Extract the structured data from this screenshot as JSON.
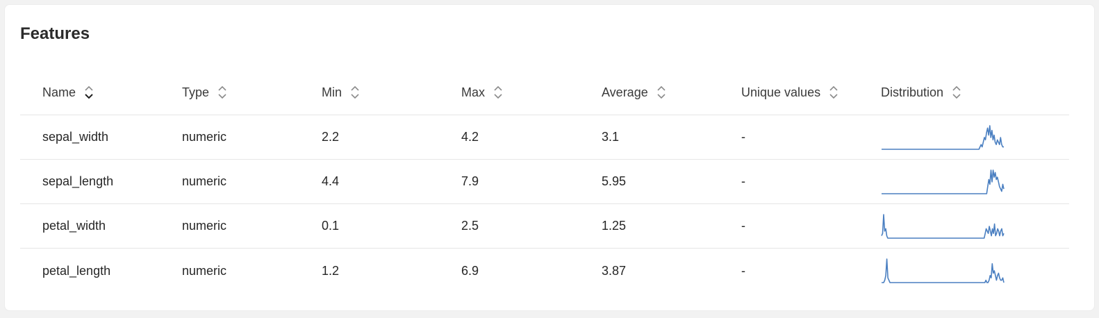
{
  "card": {
    "title": "Features"
  },
  "columns": [
    {
      "label": "Name",
      "sort_icon": "sort-toggle-icon",
      "active": true
    },
    {
      "label": "Type",
      "sort_icon": "sort-toggle-icon",
      "active": false
    },
    {
      "label": "Min",
      "sort_icon": "sort-toggle-icon",
      "active": false
    },
    {
      "label": "Max",
      "sort_icon": "sort-toggle-icon",
      "active": false
    },
    {
      "label": "Average",
      "sort_icon": "sort-toggle-icon",
      "active": false
    },
    {
      "label": "Unique values",
      "sort_icon": "sort-toggle-icon",
      "active": false
    },
    {
      "label": "Distribution",
      "sort_icon": "sort-toggle-icon",
      "active": false
    }
  ],
  "rows": [
    {
      "name": "sepal_width",
      "type": "numeric",
      "min": "2.2",
      "max": "4.2",
      "average": "3.1",
      "unique": "-",
      "distribution": [
        0,
        0,
        0,
        0,
        0,
        0,
        0,
        0,
        0,
        0,
        0,
        0,
        0,
        0,
        0,
        0,
        0,
        0,
        0,
        0,
        0,
        0,
        0,
        0,
        0,
        0,
        0,
        0,
        0,
        0,
        0,
        0,
        0,
        0,
        0,
        0,
        0,
        0,
        0,
        0,
        0,
        0,
        0,
        0,
        0,
        0,
        0,
        0,
        0,
        0,
        0,
        0,
        0,
        0,
        0,
        0,
        0,
        0,
        0,
        0,
        0,
        0,
        0,
        0,
        0,
        0,
        0,
        0,
        0,
        0,
        0,
        0,
        0,
        0,
        0,
        0,
        0,
        0,
        0,
        0,
        0,
        0,
        0,
        0,
        0,
        0,
        0,
        0,
        0,
        0,
        0,
        1,
        2,
        1,
        3,
        5,
        4,
        7,
        9,
        6,
        10,
        5,
        8,
        4,
        6,
        3,
        2,
        4,
        3,
        2,
        5,
        2,
        1,
        1
      ]
    },
    {
      "name": "sepal_length",
      "type": "numeric",
      "min": "4.4",
      "max": "7.9",
      "average": "5.95",
      "unique": "-",
      "distribution": [
        0,
        0,
        0,
        0,
        0,
        0,
        0,
        0,
        0,
        0,
        0,
        0,
        0,
        0,
        0,
        0,
        0,
        0,
        0,
        0,
        0,
        0,
        0,
        0,
        0,
        0,
        0,
        0,
        0,
        0,
        0,
        0,
        0,
        0,
        0,
        0,
        0,
        0,
        0,
        0,
        0,
        0,
        0,
        0,
        0,
        0,
        0,
        0,
        0,
        0,
        0,
        0,
        0,
        0,
        0,
        0,
        0,
        0,
        0,
        0,
        0,
        0,
        0,
        0,
        0,
        0,
        0,
        0,
        0,
        0,
        0,
        0,
        0,
        0,
        0,
        0,
        0,
        0,
        0,
        0,
        0,
        0,
        0,
        0,
        0,
        0,
        0,
        0,
        0,
        0,
        0,
        0,
        0,
        0,
        0,
        0,
        0,
        0,
        0,
        3,
        6,
        4,
        10,
        5,
        10,
        7,
        9,
        6,
        7,
        5,
        3,
        2,
        1,
        4,
        2
      ]
    },
    {
      "name": "petal_width",
      "type": "numeric",
      "min": "0.1",
      "max": "2.5",
      "average": "1.25",
      "unique": "-",
      "distribution": [
        1,
        2,
        10,
        3,
        4,
        1,
        0,
        0,
        0,
        0,
        0,
        0,
        0,
        0,
        0,
        0,
        0,
        0,
        0,
        0,
        0,
        0,
        0,
        0,
        0,
        0,
        0,
        0,
        0,
        0,
        0,
        0,
        0,
        0,
        0,
        0,
        0,
        0,
        0,
        0,
        0,
        0,
        0,
        0,
        0,
        0,
        0,
        0,
        0,
        0,
        0,
        0,
        0,
        0,
        0,
        0,
        0,
        0,
        0,
        0,
        0,
        0,
        0,
        0,
        0,
        0,
        0,
        0,
        0,
        0,
        0,
        0,
        0,
        0,
        0,
        0,
        0,
        0,
        0,
        0,
        0,
        0,
        0,
        0,
        0,
        0,
        0,
        0,
        0,
        0,
        0,
        0,
        0,
        0,
        0,
        0,
        0,
        0,
        0,
        0,
        2,
        4,
        3,
        2,
        5,
        3,
        1,
        4,
        2,
        6,
        1,
        2,
        4,
        3,
        1,
        3,
        4,
        1,
        2
      ]
    },
    {
      "name": "petal_length",
      "type": "numeric",
      "min": "1.2",
      "max": "6.9",
      "average": "3.87",
      "unique": "-",
      "distribution": [
        0,
        0,
        0,
        1,
        3,
        10,
        2,
        1,
        0,
        0,
        0,
        0,
        0,
        0,
        0,
        0,
        0,
        0,
        0,
        0,
        0,
        0,
        0,
        0,
        0,
        0,
        0,
        0,
        0,
        0,
        0,
        0,
        0,
        0,
        0,
        0,
        0,
        0,
        0,
        0,
        0,
        0,
        0,
        0,
        0,
        0,
        0,
        0,
        0,
        0,
        0,
        0,
        0,
        0,
        0,
        0,
        0,
        0,
        0,
        0,
        0,
        0,
        0,
        0,
        0,
        0,
        0,
        0,
        0,
        0,
        0,
        0,
        0,
        0,
        0,
        0,
        0,
        0,
        0,
        0,
        0,
        0,
        0,
        0,
        0,
        0,
        0,
        0,
        0,
        0,
        0,
        0,
        0,
        0,
        0,
        0,
        0,
        0,
        0,
        1,
        0,
        0,
        1,
        3,
        2,
        8,
        4,
        5,
        3,
        1,
        3,
        4,
        2,
        1,
        1,
        2,
        0
      ]
    }
  ],
  "colors": {
    "sparkline": "#4a7fc1",
    "header_text": "#3a3a3a",
    "divider": "#e6e6e6"
  }
}
